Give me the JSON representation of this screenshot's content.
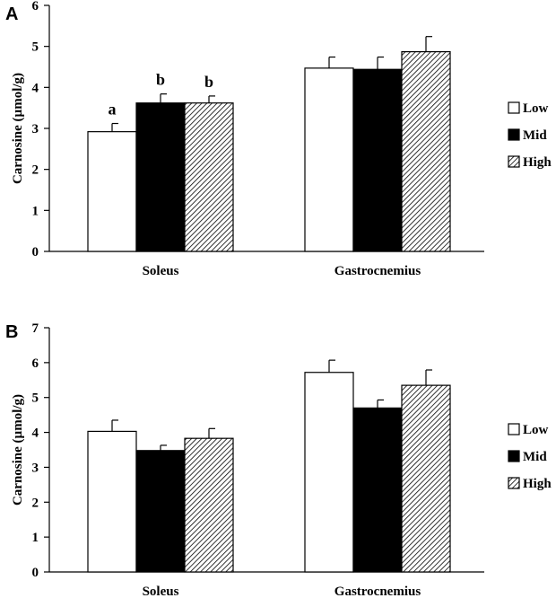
{
  "chart_data": [
    {
      "type": "bar",
      "panel": "A",
      "ylabel": "Carnosine  (µmol/g)",
      "ylim": [
        0,
        6
      ],
      "yticks": [
        "0",
        "1",
        "2",
        "3",
        "4",
        "5",
        "6"
      ],
      "categories": [
        "Soleus",
        "Gastrocnemius"
      ],
      "series": [
        {
          "name": "Low",
          "values": [
            2.92,
            4.47
          ],
          "errors": [
            0.2,
            0.27
          ]
        },
        {
          "name": "Mid",
          "values": [
            3.62,
            4.44
          ],
          "errors": [
            0.22,
            0.3
          ]
        },
        {
          "name": "High",
          "values": [
            3.62,
            4.87
          ],
          "errors": [
            0.17,
            0.37
          ]
        }
      ],
      "annotations": [
        [
          "a",
          "b",
          "b"
        ],
        [
          "",
          "",
          ""
        ]
      ],
      "legend": [
        "Low",
        "Mid",
        "High"
      ]
    },
    {
      "type": "bar",
      "panel": "B",
      "ylabel": "Carnosine (µmol/g)",
      "ylim": [
        0,
        7
      ],
      "yticks": [
        "0",
        "1",
        "2",
        "3",
        "4",
        "5",
        "6",
        "7"
      ],
      "categories": [
        "Soleus",
        "Gastrocnemius"
      ],
      "series": [
        {
          "name": "Low",
          "values": [
            4.03,
            5.72
          ],
          "errors": [
            0.32,
            0.35
          ]
        },
        {
          "name": "Mid",
          "values": [
            3.48,
            4.7
          ],
          "errors": [
            0.15,
            0.23
          ]
        },
        {
          "name": "High",
          "values": [
            3.83,
            5.35
          ],
          "errors": [
            0.28,
            0.44
          ]
        }
      ],
      "annotations": [
        [
          "",
          "",
          ""
        ],
        [
          "",
          "",
          ""
        ]
      ],
      "legend": [
        "Low",
        "Mid",
        "High"
      ]
    }
  ],
  "colors": {
    "low": "#ffffff",
    "mid": "#000000",
    "high_pattern": "hatch"
  }
}
